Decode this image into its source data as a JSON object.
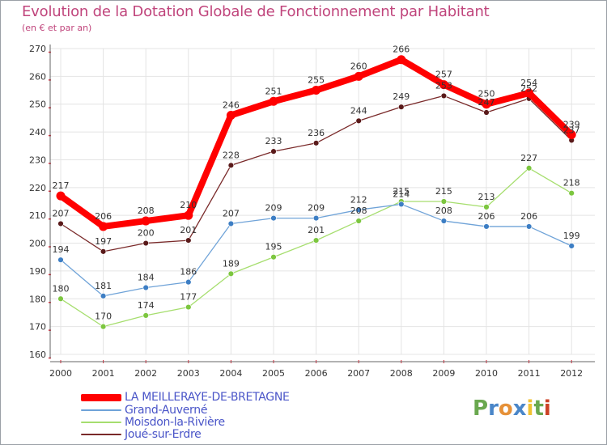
{
  "chart_data": {
    "type": "line",
    "title": "Evolution de la Dotation Globale de Fonctionnement par Habitant",
    "subtitle": "(en € et par an)",
    "xlabel": "",
    "ylabel": "",
    "categories": [
      "2000",
      "2001",
      "2002",
      "2003",
      "2004",
      "2005",
      "2006",
      "2007",
      "2008",
      "2009",
      "2010",
      "2011",
      "2012"
    ],
    "ylim": [
      160,
      270
    ],
    "yticks": [
      160,
      170,
      180,
      190,
      200,
      210,
      220,
      230,
      240,
      250,
      260,
      270
    ],
    "grid": true,
    "series": [
      {
        "name": "LA MEILLERAYE-DE-BRETAGNE",
        "color": "#ff0000",
        "point_color": "#ff0000",
        "values": [
          217,
          206,
          208,
          210,
          246,
          251,
          255,
          260,
          266,
          257,
          250,
          254,
          239
        ]
      },
      {
        "name": "Grand-Auverné",
        "color": "#6fa3d8",
        "point_color": "#3d7ec4",
        "values": [
          194,
          181,
          184,
          186,
          207,
          209,
          209,
          212,
          214,
          208,
          206,
          206,
          199
        ]
      },
      {
        "name": "Moisdon-la-Rivière",
        "color": "#a6de6e",
        "point_color": "#7cc63f",
        "values": [
          180,
          170,
          174,
          177,
          189,
          195,
          201,
          208,
          215,
          215,
          213,
          227,
          218
        ]
      },
      {
        "name": "Joué-sur-Erdre",
        "color": "#7a2a2a",
        "point_color": "#5a1a1a",
        "values": [
          207,
          197,
          200,
          201,
          228,
          233,
          236,
          244,
          249,
          253,
          247,
          252,
          237
        ]
      }
    ],
    "data_labels": [
      [
        "217",
        "206",
        "208",
        "210",
        "246",
        "251",
        "255",
        "260",
        "266",
        "257",
        "250",
        "254",
        "239"
      ],
      [
        "194",
        "181",
        "184",
        "186",
        "207",
        "209",
        "209",
        "212",
        "214",
        "208",
        "206",
        "206",
        "199"
      ],
      [
        "180",
        "170",
        "174",
        "177",
        "189",
        "195",
        "201",
        "208",
        "215",
        "215",
        "213",
        "227",
        "218"
      ],
      [
        "207",
        "197",
        "200",
        "201",
        "228",
        "233",
        "236",
        "244",
        "249",
        "253",
        "247",
        "252",
        "237"
      ]
    ]
  },
  "legend_entries": [
    "LA MEILLERAYE-DE-BRETAGNE",
    "Grand-Auverné",
    "Moisdon-la-Rivière",
    "Joué-sur-Erdre"
  ],
  "logo": {
    "letters": [
      "P",
      "r",
      "o",
      "x",
      "i",
      "t",
      "i"
    ],
    "colors": [
      "#6aa84f",
      "#4a86c8",
      "#e69138",
      "#4a86c8",
      "#f1c232",
      "#6aa84f",
      "#cc4125"
    ]
  }
}
